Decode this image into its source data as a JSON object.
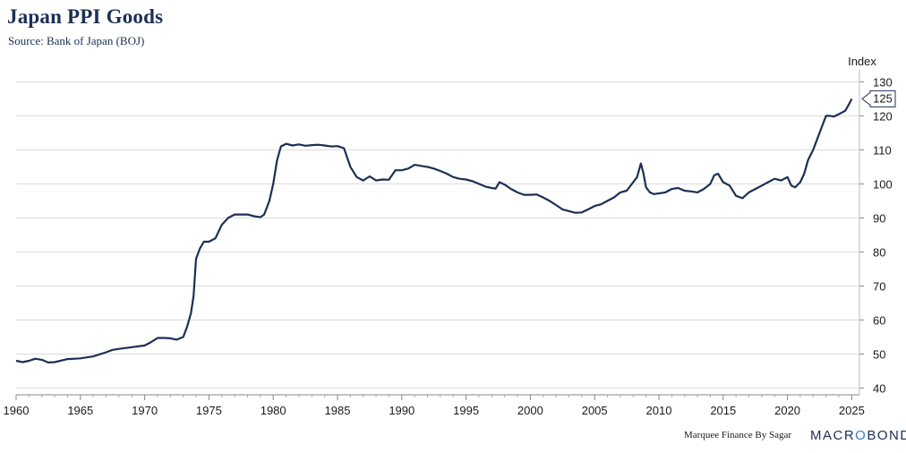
{
  "header": {
    "title": "Japan PPI Goods",
    "subtitle": "Source: Bank of Japan (BOJ)"
  },
  "footer": {
    "credit": "Marquee Finance By Sagar",
    "brand_prefix": "MACR",
    "brand_o": "O",
    "brand_suffix": "BOND"
  },
  "colors": {
    "line": "#1c2f54",
    "grid": "#d9d9d9",
    "brand_accent": "#3b7fc4"
  },
  "chart_data": {
    "type": "line",
    "title": "Japan PPI Goods",
    "ylabel": "Index",
    "xlim": [
      1960,
      2025.6
    ],
    "ylim": [
      38,
      133
    ],
    "yticks": [
      40,
      50,
      60,
      70,
      80,
      90,
      100,
      110,
      120,
      130
    ],
    "xticks": [
      1960,
      1965,
      1970,
      1975,
      1980,
      1985,
      1990,
      1995,
      2000,
      2005,
      2010,
      2015,
      2020,
      2025
    ],
    "grid": true,
    "y_axis_side": "right",
    "last_value_label": "125",
    "series": [
      {
        "x": [
          1960,
          1960.5,
          1961,
          1961.5,
          1962,
          1962.5,
          1963,
          1964,
          1965,
          1966,
          1967,
          1967.5,
          1968,
          1969,
          1970,
          1970.5,
          1971,
          1971.5,
          1972,
          1972.5,
          1973,
          1973.3,
          1973.6,
          1973.8,
          1974,
          1974.3,
          1974.6,
          1975,
          1975.5,
          1976,
          1976.5,
          1977,
          1977.5,
          1978,
          1978.5,
          1979,
          1979.3,
          1979.7,
          1980,
          1980.3,
          1980.6,
          1981,
          1981.5,
          1982,
          1982.5,
          1983,
          1983.5,
          1984,
          1984.5,
          1985,
          1985.5,
          1986,
          1986.5,
          1987,
          1987.5,
          1988,
          1988.5,
          1989,
          1989.5,
          1990,
          1990.5,
          1991,
          1991.5,
          1992,
          1992.5,
          1993,
          1993.5,
          1994,
          1994.5,
          1995,
          1995.5,
          1996,
          1996.5,
          1997,
          1997.3,
          1997.6,
          1998,
          1998.5,
          1999,
          1999.5,
          2000,
          2000.5,
          2001,
          2001.5,
          2002,
          2002.5,
          2003,
          2003.5,
          2004,
          2004.5,
          2005,
          2005.5,
          2006,
          2006.5,
          2007,
          2007.5,
          2008,
          2008.3,
          2008.6,
          2008.8,
          2009,
          2009.3,
          2009.6,
          2010,
          2010.5,
          2011,
          2011.5,
          2012,
          2012.5,
          2013,
          2013.5,
          2014,
          2014.3,
          2014.6,
          2015,
          2015.5,
          2016,
          2016.5,
          2017,
          2017.5,
          2018,
          2018.5,
          2019,
          2019.5,
          2020,
          2020.3,
          2020.6,
          2021,
          2021.3,
          2021.6,
          2022,
          2022.3,
          2022.6,
          2022.9,
          2023,
          2023.3,
          2023.6,
          2024,
          2024.5,
          2024.8,
          2025
        ],
        "values": [
          48.0,
          47.6,
          48.0,
          48.6,
          48.3,
          47.5,
          47.6,
          48.5,
          48.7,
          49.3,
          50.5,
          51.2,
          51.5,
          52.0,
          52.5,
          53.5,
          54.7,
          54.7,
          54.6,
          54.2,
          55.0,
          58.0,
          62.0,
          67.0,
          78.0,
          81.0,
          83.0,
          83.0,
          84.0,
          88.0,
          90.0,
          91.0,
          91.0,
          91.0,
          90.5,
          90.2,
          91.0,
          95.0,
          100.0,
          107.0,
          111.0,
          111.8,
          111.3,
          111.6,
          111.2,
          111.4,
          111.5,
          111.3,
          111.0,
          111.1,
          110.5,
          105.0,
          102.0,
          101.0,
          102.2,
          101.0,
          101.3,
          101.2,
          104.0,
          104.0,
          104.5,
          105.6,
          105.3,
          105.0,
          104.5,
          103.8,
          103.0,
          102.0,
          101.5,
          101.3,
          100.8,
          100.0,
          99.2,
          98.8,
          98.6,
          100.5,
          99.8,
          98.5,
          97.5,
          96.8,
          96.8,
          96.9,
          96.0,
          95.0,
          93.8,
          92.5,
          92.0,
          91.5,
          91.6,
          92.5,
          93.5,
          94.0,
          95.0,
          96.0,
          97.5,
          98.0,
          100.5,
          102.0,
          106.0,
          103.0,
          99.0,
          97.5,
          97.0,
          97.2,
          97.5,
          98.5,
          98.8,
          98.0,
          97.8,
          97.5,
          98.5,
          100.0,
          102.5,
          103.0,
          100.5,
          99.5,
          96.5,
          95.8,
          97.5,
          98.5,
          99.5,
          100.5,
          101.5,
          101.0,
          102.0,
          99.5,
          99.0,
          100.5,
          103.0,
          107.0,
          110.0,
          113.0,
          116.0,
          119.0,
          120.0,
          120.0,
          119.8,
          120.5,
          121.5,
          123.5,
          125.0
        ]
      }
    ]
  }
}
